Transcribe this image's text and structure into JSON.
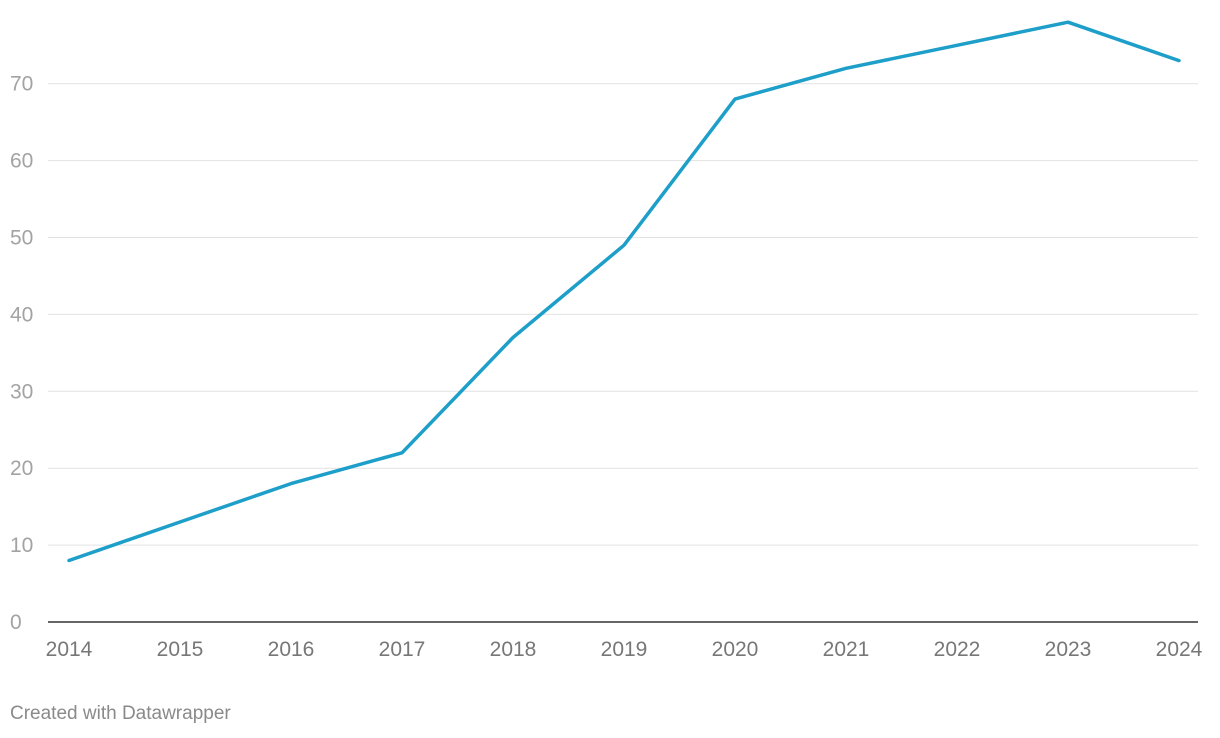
{
  "chart_data": {
    "type": "line",
    "title": "",
    "xlabel": "",
    "ylabel": "",
    "x": [
      2014,
      2015,
      2016,
      2017,
      2018,
      2019,
      2020,
      2021,
      2022,
      2023,
      2024
    ],
    "series": [
      {
        "values": [
          8,
          13,
          18,
          22,
          37,
          49,
          68,
          72,
          75,
          78,
          73
        ],
        "color": "#1d9fc9"
      }
    ],
    "xlim": [
      2014,
      2024
    ],
    "ylim": [
      0,
      78
    ],
    "yticks": [
      0,
      10,
      20,
      30,
      40,
      50,
      60,
      70
    ],
    "xticks": [
      2014,
      2015,
      2016,
      2017,
      2018,
      2019,
      2020,
      2021,
      2022,
      2023,
      2024
    ],
    "grid": true,
    "legend": "none"
  },
  "colors": {
    "line": "#1d9fc9",
    "grid": "#e2e2e2",
    "baseline": "#333333",
    "y_tick_text": "#a3a3a3",
    "x_tick_text": "#777777"
  },
  "footer": {
    "credit": "Created with Datawrapper"
  }
}
